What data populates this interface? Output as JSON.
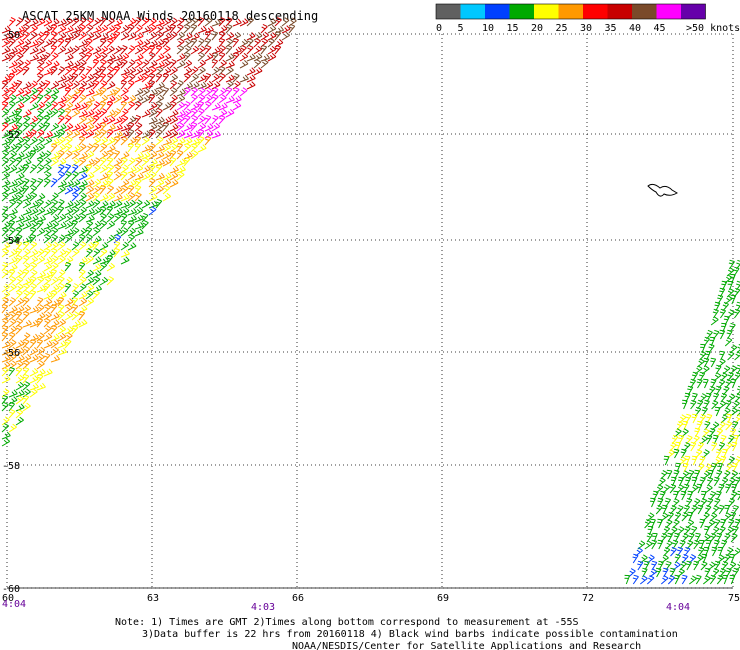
{
  "title": "ASCAT 25KM NOAA Winds 20160118 descending",
  "legend": {
    "unit_label": ">50 knots",
    "ticks": [
      "0",
      "5",
      "10",
      "15",
      "20",
      "25",
      "30",
      "35",
      "40",
      "45"
    ],
    "colors": [
      "#606060",
      "#00c8ff",
      "#0040ff",
      "#00aa00",
      "#ffff00",
      "#ff9900",
      "#ff0000",
      "#c80000",
      "#7a4a2a",
      "#ff00ff",
      "#6600aa"
    ]
  },
  "lat_labels": [
    "-50",
    "-52",
    "-54",
    "-56",
    "-58",
    "-60"
  ],
  "lon_labels": [
    "60",
    "63",
    "66",
    "69",
    "72",
    "75"
  ],
  "time_labels": [
    "4:04",
    "4:03",
    "4:04"
  ],
  "notes": {
    "line1": "Note: 1) Times are GMT 2)Times along bottom correspond to measurement at -55S",
    "line2": "3)Data buffer is 22 hrs from 20160118 4) Black wind barbs indicate possible contamination",
    "line3": "NOAA/NESDIS/Center for Satellite Applications and Research"
  }
}
